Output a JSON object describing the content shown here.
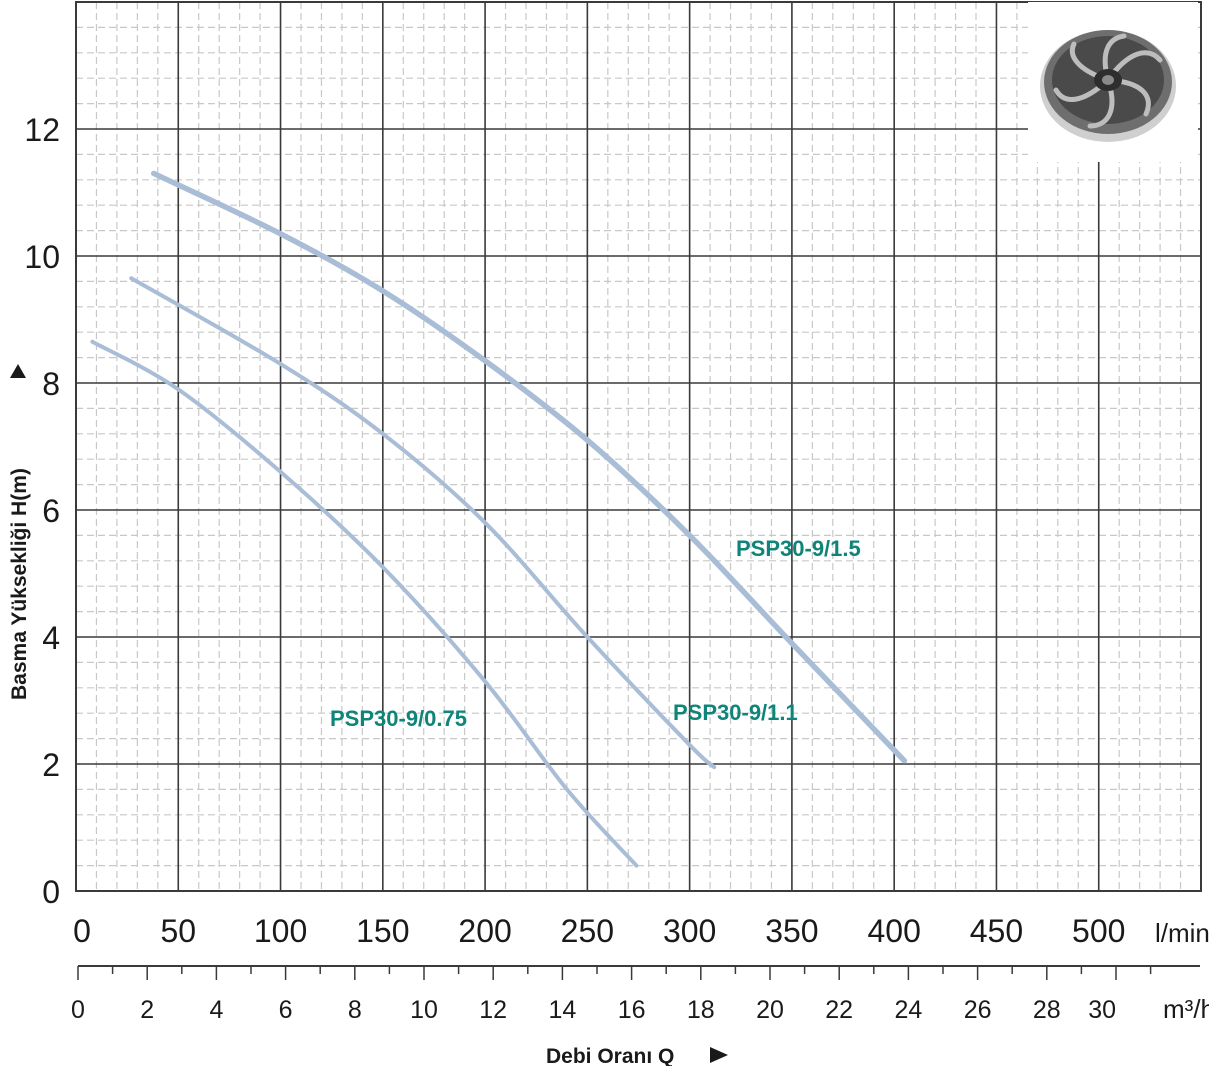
{
  "chart_data": {
    "type": "line",
    "title": "",
    "ylabel": "Basma Yüksekliği H(m)",
    "xlabel": "Debi Oranı Q",
    "x_unit_primary": "l/min",
    "x_unit_secondary": "m³/h",
    "xlim": [
      0,
      550
    ],
    "ylim": [
      0,
      14
    ],
    "x_ticks": [
      0,
      50,
      100,
      150,
      200,
      250,
      300,
      350,
      400,
      450,
      500
    ],
    "x_ticks_secondary": [
      0,
      2,
      4,
      6,
      8,
      10,
      12,
      14,
      16,
      18,
      20,
      22,
      24,
      26,
      28,
      30
    ],
    "y_ticks": [
      0,
      2,
      4,
      6,
      8,
      10,
      12
    ],
    "grid": true,
    "series": [
      {
        "name": "PSP30-9/0.75",
        "color": "#a9bdd6",
        "points": [
          [
            8,
            8.65
          ],
          [
            50,
            7.9
          ],
          [
            100,
            6.6
          ],
          [
            150,
            5.1
          ],
          [
            200,
            3.3
          ],
          [
            240,
            1.6
          ],
          [
            274,
            0.4
          ]
        ]
      },
      {
        "name": "PSP30-9/1.1",
        "color": "#a9bdd6",
        "points": [
          [
            27,
            9.65
          ],
          [
            100,
            8.3
          ],
          [
            150,
            7.2
          ],
          [
            200,
            5.8
          ],
          [
            250,
            4.0
          ],
          [
            300,
            2.3
          ],
          [
            312,
            1.95
          ]
        ]
      },
      {
        "name": "PSP30-9/1.5",
        "color": "#a9bdd6",
        "points": [
          [
            38,
            11.3
          ],
          [
            100,
            10.35
          ],
          [
            150,
            9.45
          ],
          [
            200,
            8.35
          ],
          [
            250,
            7.1
          ],
          [
            300,
            5.6
          ],
          [
            350,
            3.9
          ],
          [
            405,
            2.05
          ]
        ]
      }
    ],
    "label_color": "#0f8478"
  },
  "decor": {
    "impeller_icon": "impeller-photo"
  }
}
